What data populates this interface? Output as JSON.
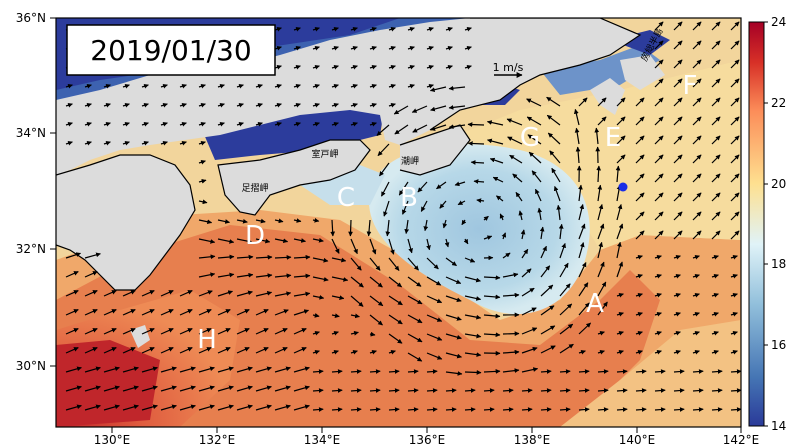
{
  "date": "2019/01/30",
  "scale": {
    "label": "1 m/s"
  },
  "lat_ticks": [
    {
      "value": 36,
      "label": "36°N"
    },
    {
      "value": 34,
      "label": "34°N"
    },
    {
      "value": 32,
      "label": "32°N"
    },
    {
      "value": 30,
      "label": "30°N"
    }
  ],
  "lon_ticks": [
    {
      "value": 130,
      "label": "130°E"
    },
    {
      "value": 132,
      "label": "132°E"
    },
    {
      "value": 134,
      "label": "134°E"
    },
    {
      "value": 136,
      "label": "136°E"
    },
    {
      "value": 138,
      "label": "138°E"
    },
    {
      "value": 140,
      "label": "140°E"
    },
    {
      "value": 142,
      "label": "142°E"
    }
  ],
  "colorbar": {
    "min": 14,
    "max": 24,
    "ticks": [
      {
        "value": 24,
        "label": "24"
      },
      {
        "value": 22,
        "label": "22"
      },
      {
        "value": 20,
        "label": "20"
      },
      {
        "value": 18,
        "label": "18"
      },
      {
        "value": 16,
        "label": "16"
      },
      {
        "value": 14,
        "label": "14"
      }
    ]
  },
  "region_labels": [
    {
      "id": "A",
      "text": "A"
    },
    {
      "id": "B",
      "text": "B"
    },
    {
      "id": "C",
      "text": "C"
    },
    {
      "id": "D",
      "text": "D"
    },
    {
      "id": "E",
      "text": "E"
    },
    {
      "id": "F",
      "text": "F"
    },
    {
      "id": "G",
      "text": "G"
    },
    {
      "id": "H",
      "text": "H"
    }
  ],
  "place_labels": {
    "muroto": "室戸岬",
    "shionomisaki": "潮岬",
    "ashizuri": "足摺岬",
    "boso": "房総半島"
  },
  "colors": {
    "land": "#dcdcdc",
    "deep_blue": "#2c3c9c",
    "marker": "#1a2ee6"
  }
}
